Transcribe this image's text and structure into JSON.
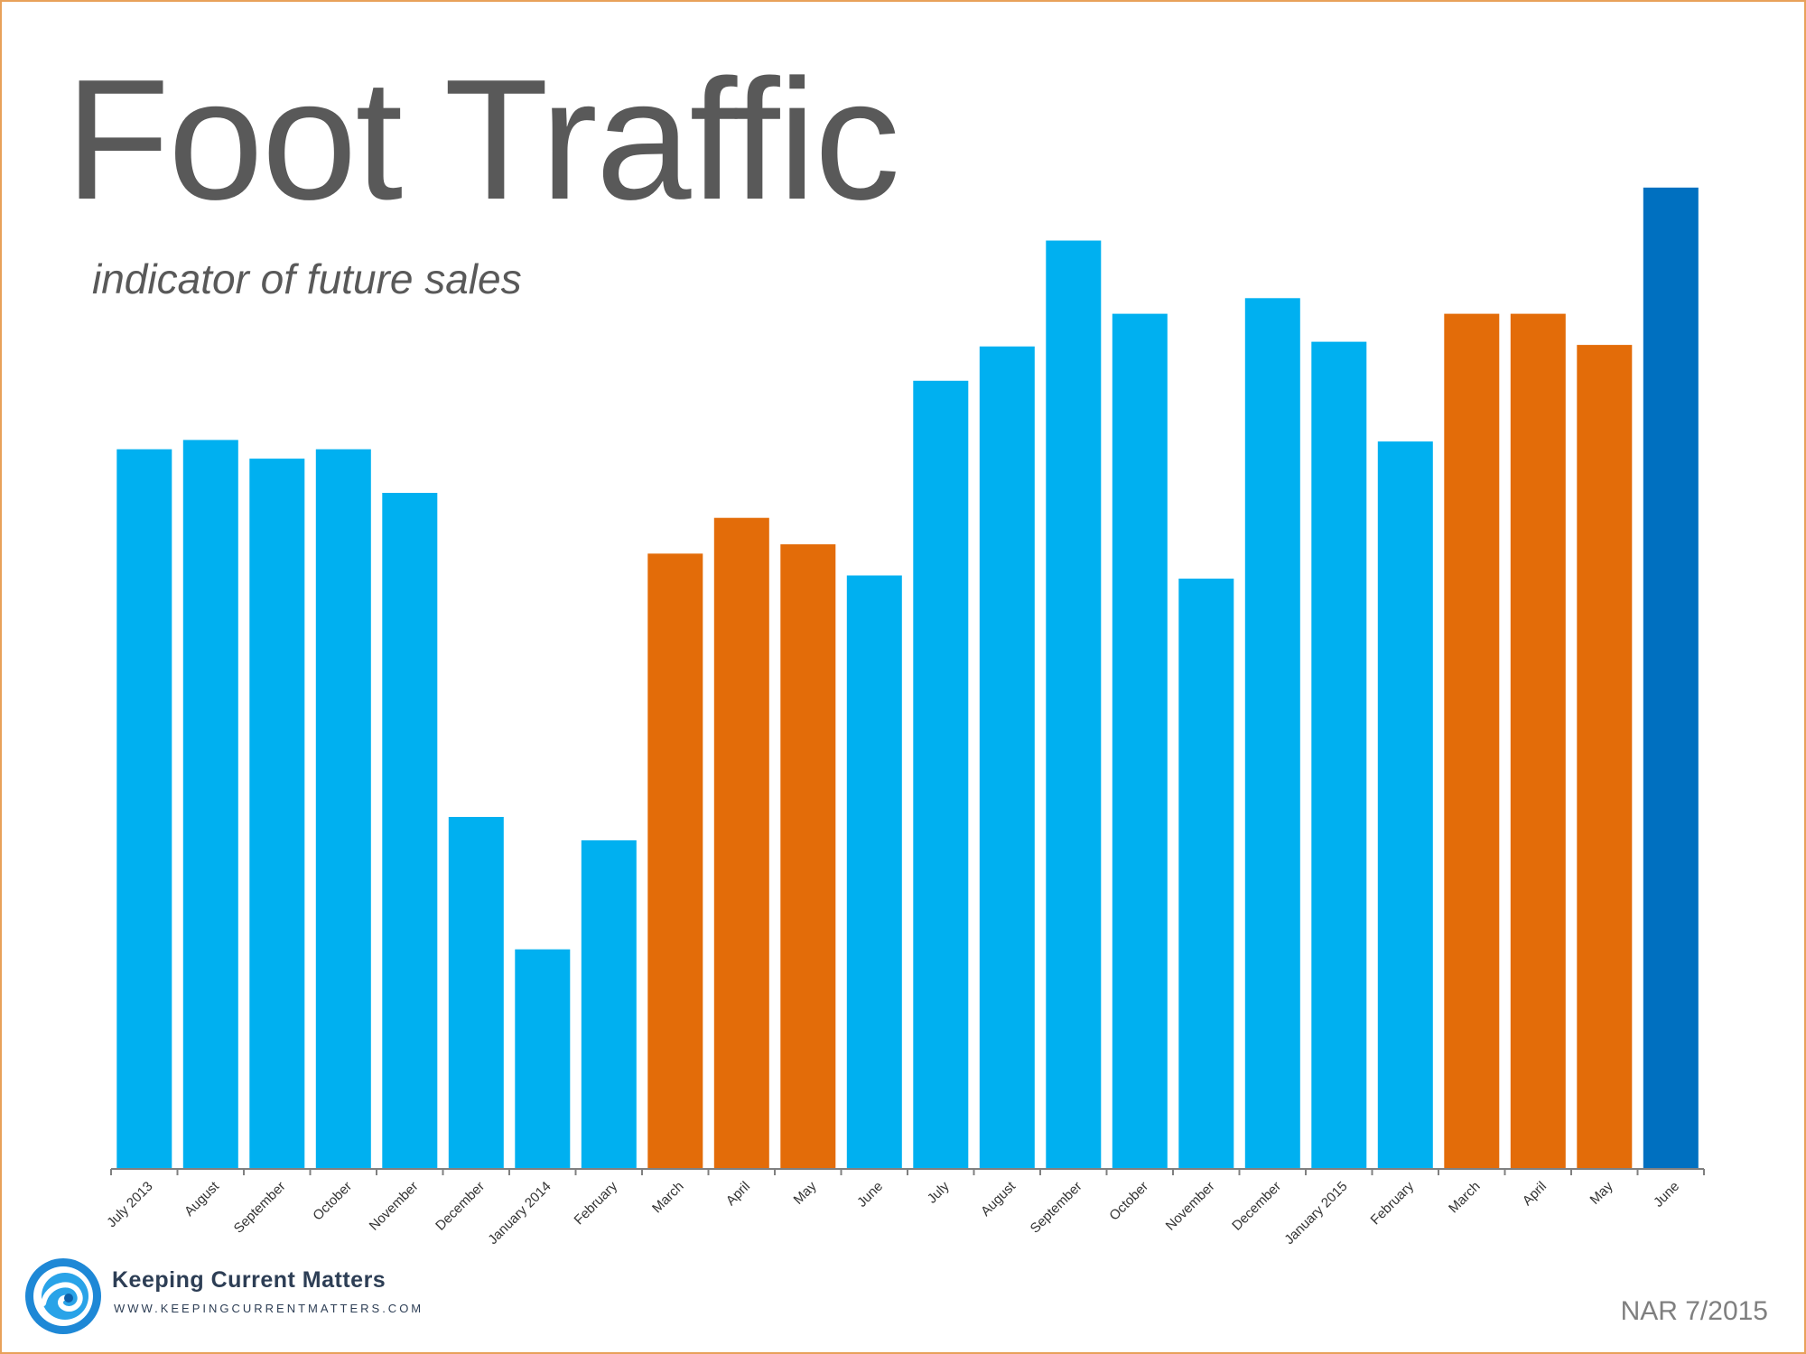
{
  "title": "Foot Traffic",
  "subtitle": "indicator of future sales",
  "source": "NAR 7/2015",
  "brand": {
    "name": "Keeping Current Matters",
    "url": "WWW.KEEPINGCURRENTMATTERS.COM",
    "logo_icon": "wave-spiral-icon"
  },
  "colors": {
    "light_blue": "#00b0f0",
    "orange": "#e36c09",
    "dark_blue": "#0070c0",
    "frame": "#e8a15a"
  },
  "chart_data": {
    "type": "bar",
    "title": "Foot Traffic",
    "subtitle": "indicator of future sales",
    "xlabel": "",
    "ylabel": "",
    "grid": false,
    "legend": "none",
    "ylim": [
      0,
      70
    ],
    "categories": [
      "July 2013",
      "August",
      "September",
      "October",
      "November",
      "December",
      "January 2014",
      "February",
      "March",
      "April",
      "May",
      "June",
      "July",
      "August",
      "September",
      "October",
      "November",
      "December",
      "January 2015",
      "February",
      "March",
      "April",
      "May",
      "June"
    ],
    "values": [
      46.2,
      46.8,
      45.6,
      46.2,
      43.4,
      22.6,
      14.1,
      21.1,
      39.5,
      41.8,
      40.1,
      38.1,
      50.6,
      52.8,
      59.6,
      54.9,
      37.9,
      55.9,
      53.1,
      46.7,
      54.9,
      54.9,
      52.9,
      63.0
    ],
    "bar_colors": [
      "light_blue",
      "light_blue",
      "light_blue",
      "light_blue",
      "light_blue",
      "light_blue",
      "light_blue",
      "light_blue",
      "orange",
      "orange",
      "orange",
      "light_blue",
      "light_blue",
      "light_blue",
      "light_blue",
      "light_blue",
      "light_blue",
      "light_blue",
      "light_blue",
      "light_blue",
      "orange",
      "orange",
      "orange",
      "dark_blue"
    ]
  }
}
